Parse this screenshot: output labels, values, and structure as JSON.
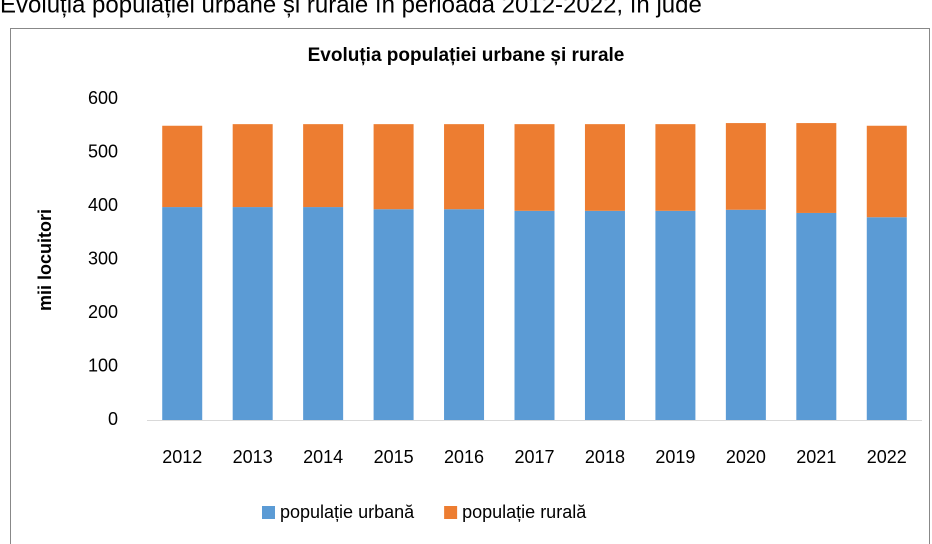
{
  "heading": "Evoluția populației urbane și rurale în perioada 2012-2022, în jude",
  "chart_data": {
    "type": "stacked-bar",
    "title": "Evoluția populației urbane și rurale",
    "y_label": "mii locuitori",
    "categories": [
      "2012",
      "2013",
      "2014",
      "2015",
      "2016",
      "2017",
      "2018",
      "2019",
      "2020",
      "2021",
      "2022"
    ],
    "series": [
      {
        "name": "populație urbană",
        "color": "#5b9bd5",
        "values": [
          398,
          398,
          398,
          394,
          394,
          391,
          391,
          391,
          393,
          387,
          379
        ]
      },
      {
        "name": "populație rurală",
        "color": "#ed7d31",
        "values": [
          152,
          155,
          155,
          159,
          159,
          162,
          162,
          162,
          162,
          168,
          171
        ]
      }
    ],
    "ylim": [
      0,
      600
    ],
    "yticks": [
      0,
      100,
      200,
      300,
      400,
      500,
      600
    ],
    "grid": false,
    "legend": "bottom"
  }
}
